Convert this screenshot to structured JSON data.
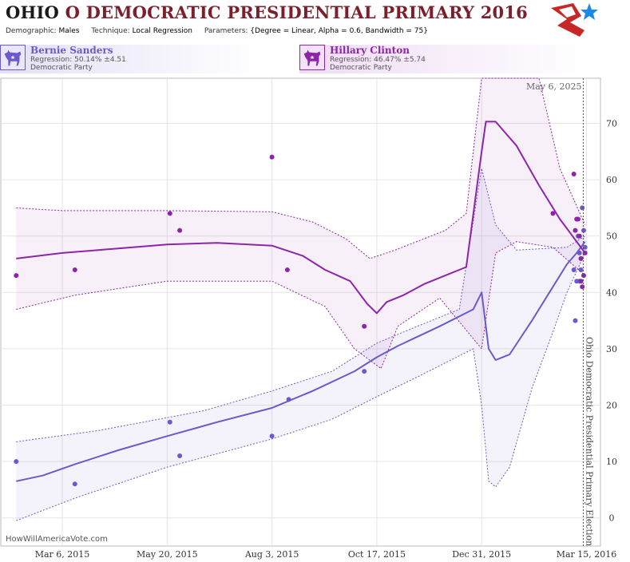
{
  "header": {
    "state": "OHIO",
    "title_rest": "O DEMOCRATIC PRESIDENTIAL PRIMARY 2016",
    "demographic_label": "Demographic:",
    "demographic": "Males",
    "technique_label": "Technique:",
    "technique": "Local Regression",
    "parameters_label": "Parameters:",
    "parameters": "{Degree = Linear, Alpha = 0.6, Bandwidth = 75}"
  },
  "candidates": [
    {
      "name": "Bernie Sanders",
      "regression": "Regression: 50.14% ±4.51",
      "party": "Democratic Party",
      "color": "#6a5acd"
    },
    {
      "name": "Hillary Clinton",
      "regression": "Regression: 46.47% ±5.74",
      "party": "Democratic Party",
      "color": "#8e24aa"
    }
  ],
  "footer": {
    "watermark": "HowWillAmericaVote.com"
  },
  "icons": {
    "party": "democrat-donkey-icon",
    "logo": "hwav-star-logo-icon"
  },
  "chart_data": {
    "type": "line",
    "x_type": "date",
    "x_ticks": [
      "2015-03-06",
      "2015-05-20",
      "2015-08-03",
      "2015-10-17",
      "2015-12-31",
      "2016-03-15"
    ],
    "x_tick_labels": [
      "Mar 6, 2015",
      "May 20, 2015",
      "Aug 3, 2015",
      "Oct 17, 2015",
      "Dec 31, 2015",
      "Mar 15, 2016"
    ],
    "xlim": [
      "2015-01-21",
      "2016-03-25"
    ],
    "ylim": [
      -5,
      78
    ],
    "y_ticks": [
      0,
      10,
      20,
      30,
      40,
      50,
      60,
      70
    ],
    "grid": true,
    "date_label": "May 6, 2025",
    "event_date": "2016-03-15",
    "event_label": "Ohio Democratic Presidential Primary Election",
    "series": [
      {
        "name": "Bernie Sanders",
        "color": "#6a5acd",
        "points": [
          [
            "2015-02-01",
            10
          ],
          [
            "2015-03-15",
            6
          ],
          [
            "2015-05-22",
            17
          ],
          [
            "2015-05-29",
            11
          ],
          [
            "2015-08-03",
            14.5
          ],
          [
            "2015-08-15",
            21
          ],
          [
            "2015-10-08",
            26
          ],
          [
            "2016-03-06",
            44
          ],
          [
            "2016-03-07",
            35
          ],
          [
            "2016-03-08",
            42
          ],
          [
            "2016-03-09",
            50
          ],
          [
            "2016-03-10",
            47
          ],
          [
            "2016-03-10",
            42
          ],
          [
            "2016-03-11",
            44
          ],
          [
            "2016-03-12",
            55
          ],
          [
            "2016-03-13",
            51
          ],
          [
            "2016-03-14",
            48
          ]
        ],
        "trend": [
          [
            "2015-02-01",
            6.5
          ],
          [
            "2015-02-20",
            7.5
          ],
          [
            "2015-03-15",
            9.5
          ],
          [
            "2015-04-15",
            12
          ],
          [
            "2015-05-20",
            14.5
          ],
          [
            "2015-06-25",
            17
          ],
          [
            "2015-08-03",
            19.5
          ],
          [
            "2015-09-01",
            22.5
          ],
          [
            "2015-10-01",
            26
          ],
          [
            "2015-10-17",
            28.5
          ],
          [
            "2015-11-01",
            30.5
          ],
          [
            "2015-12-01",
            34
          ],
          [
            "2015-12-25",
            37
          ],
          [
            "2015-12-31",
            40
          ],
          [
            "2016-01-05",
            30
          ],
          [
            "2016-01-10",
            28
          ],
          [
            "2016-01-20",
            29
          ],
          [
            "2016-02-05",
            35
          ],
          [
            "2016-02-20",
            41
          ],
          [
            "2016-03-01",
            45
          ],
          [
            "2016-03-08",
            47
          ],
          [
            "2016-03-14",
            49
          ]
        ],
        "upper": [
          [
            "2015-02-01",
            13.5
          ],
          [
            "2015-04-01",
            15.5
          ],
          [
            "2015-06-15",
            19
          ],
          [
            "2015-08-03",
            22.5
          ],
          [
            "2015-09-15",
            26
          ],
          [
            "2015-10-17",
            31
          ],
          [
            "2015-11-15",
            34
          ],
          [
            "2015-12-15",
            37
          ],
          [
            "2015-12-31",
            62
          ],
          [
            "2016-01-10",
            52
          ],
          [
            "2016-01-25",
            47.5
          ],
          [
            "2016-03-01",
            48
          ],
          [
            "2016-03-14",
            50
          ]
        ],
        "lower": [
          [
            "2015-02-01",
            -0.5
          ],
          [
            "2015-03-15",
            3.5
          ],
          [
            "2015-05-20",
            9
          ],
          [
            "2015-08-03",
            14
          ],
          [
            "2015-09-15",
            17.5
          ],
          [
            "2015-10-17",
            21.5
          ],
          [
            "2015-11-15",
            25
          ],
          [
            "2015-12-25",
            30
          ],
          [
            "2015-12-31",
            20
          ],
          [
            "2016-01-05",
            6.5
          ],
          [
            "2016-01-10",
            5.5
          ],
          [
            "2016-01-20",
            9
          ],
          [
            "2016-02-05",
            23
          ],
          [
            "2016-02-20",
            33
          ],
          [
            "2016-03-01",
            40
          ],
          [
            "2016-03-14",
            47
          ]
        ]
      },
      {
        "name": "Hillary Clinton",
        "color": "#8e24aa",
        "points": [
          [
            "2015-02-01",
            43
          ],
          [
            "2015-03-15",
            44
          ],
          [
            "2015-05-22",
            54
          ],
          [
            "2015-05-29",
            51
          ],
          [
            "2015-08-03",
            64
          ],
          [
            "2015-08-14",
            44
          ],
          [
            "2015-10-08",
            34
          ],
          [
            "2016-02-20",
            54
          ],
          [
            "2016-03-06",
            61
          ],
          [
            "2016-03-07",
            51
          ],
          [
            "2016-03-08",
            53
          ],
          [
            "2016-03-09",
            53
          ],
          [
            "2016-03-10",
            50
          ],
          [
            "2016-03-11",
            46
          ],
          [
            "2016-03-11",
            42
          ],
          [
            "2016-03-12",
            41
          ],
          [
            "2016-03-13",
            43
          ],
          [
            "2016-03-14",
            47
          ]
        ],
        "trend": [
          [
            "2015-02-01",
            46
          ],
          [
            "2015-03-06",
            47
          ],
          [
            "2015-04-15",
            47.8
          ],
          [
            "2015-05-20",
            48.5
          ],
          [
            "2015-06-25",
            48.8
          ],
          [
            "2015-08-03",
            48.3
          ],
          [
            "2015-08-25",
            46.5
          ],
          [
            "2015-09-10",
            44
          ],
          [
            "2015-09-28",
            42
          ],
          [
            "2015-10-10",
            38
          ],
          [
            "2015-10-17",
            36.3
          ],
          [
            "2015-10-24",
            38.3
          ],
          [
            "2015-11-05",
            39.5
          ],
          [
            "2015-11-20",
            41.5
          ],
          [
            "2015-12-10",
            43.5
          ],
          [
            "2015-12-20",
            44.5
          ],
          [
            "2015-12-31",
            65
          ],
          [
            "2016-01-03",
            70.3
          ],
          [
            "2016-01-10",
            70.3
          ],
          [
            "2016-01-25",
            66
          ],
          [
            "2016-02-10",
            59
          ],
          [
            "2016-02-25",
            53
          ],
          [
            "2016-03-05",
            50
          ],
          [
            "2016-03-14",
            47
          ]
        ],
        "upper": [
          [
            "2015-02-01",
            55
          ],
          [
            "2015-03-06",
            54.5
          ],
          [
            "2015-05-20",
            54.5
          ],
          [
            "2015-08-03",
            54.3
          ],
          [
            "2015-09-01",
            52.5
          ],
          [
            "2015-09-25",
            49.5
          ],
          [
            "2015-10-12",
            46
          ],
          [
            "2015-10-30",
            47.5
          ],
          [
            "2015-12-05",
            51
          ],
          [
            "2015-12-20",
            54
          ],
          [
            "2015-12-31",
            78
          ],
          [
            "2016-02-10",
            78
          ],
          [
            "2016-02-25",
            62
          ],
          [
            "2016-03-14",
            52
          ]
        ],
        "lower": [
          [
            "2015-02-01",
            37
          ],
          [
            "2015-03-15",
            39.5
          ],
          [
            "2015-05-20",
            42
          ],
          [
            "2015-08-03",
            42
          ],
          [
            "2015-09-10",
            37.5
          ],
          [
            "2015-10-01",
            30
          ],
          [
            "2015-10-20",
            26.5
          ],
          [
            "2015-11-01",
            34
          ],
          [
            "2015-12-01",
            39
          ],
          [
            "2015-12-31",
            30
          ],
          [
            "2016-01-10",
            47
          ],
          [
            "2016-01-25",
            49
          ],
          [
            "2016-02-20",
            48
          ],
          [
            "2016-03-14",
            43
          ]
        ]
      }
    ]
  }
}
